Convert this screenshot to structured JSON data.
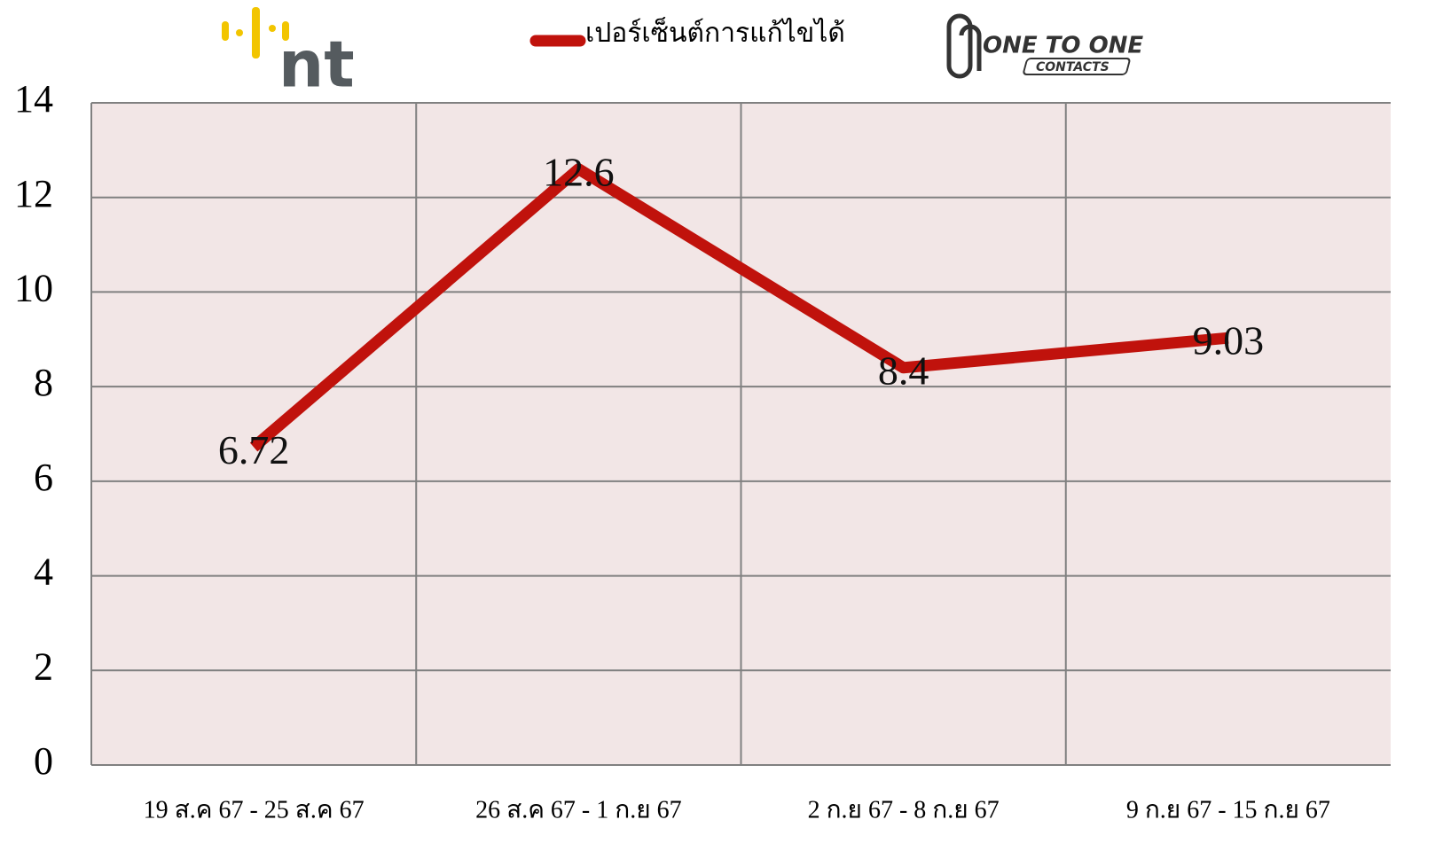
{
  "logos": {
    "left": "nt",
    "right": "ONE TO ONE",
    "right_sub": "CONTACTS"
  },
  "chart_data": {
    "type": "line",
    "categories": [
      "19 ส.ค 67 - 25 ส.ค 67",
      "26 ส.ค 67 - 1 ก.ย 67",
      "2 ก.ย 67 - 8 ก.ย 67",
      "9 ก.ย 67 - 15 ก.ย 67"
    ],
    "series": [
      {
        "name": "เปอร์เซ็นต์การแก้ไขได้",
        "color": "#c0120c",
        "values": [
          6.72,
          12.6,
          8.4,
          9.03
        ]
      }
    ],
    "ylim": [
      0,
      14
    ],
    "yticks": [
      0,
      2,
      4,
      6,
      8,
      10,
      12,
      14
    ],
    "grid": true,
    "legend": "top"
  }
}
